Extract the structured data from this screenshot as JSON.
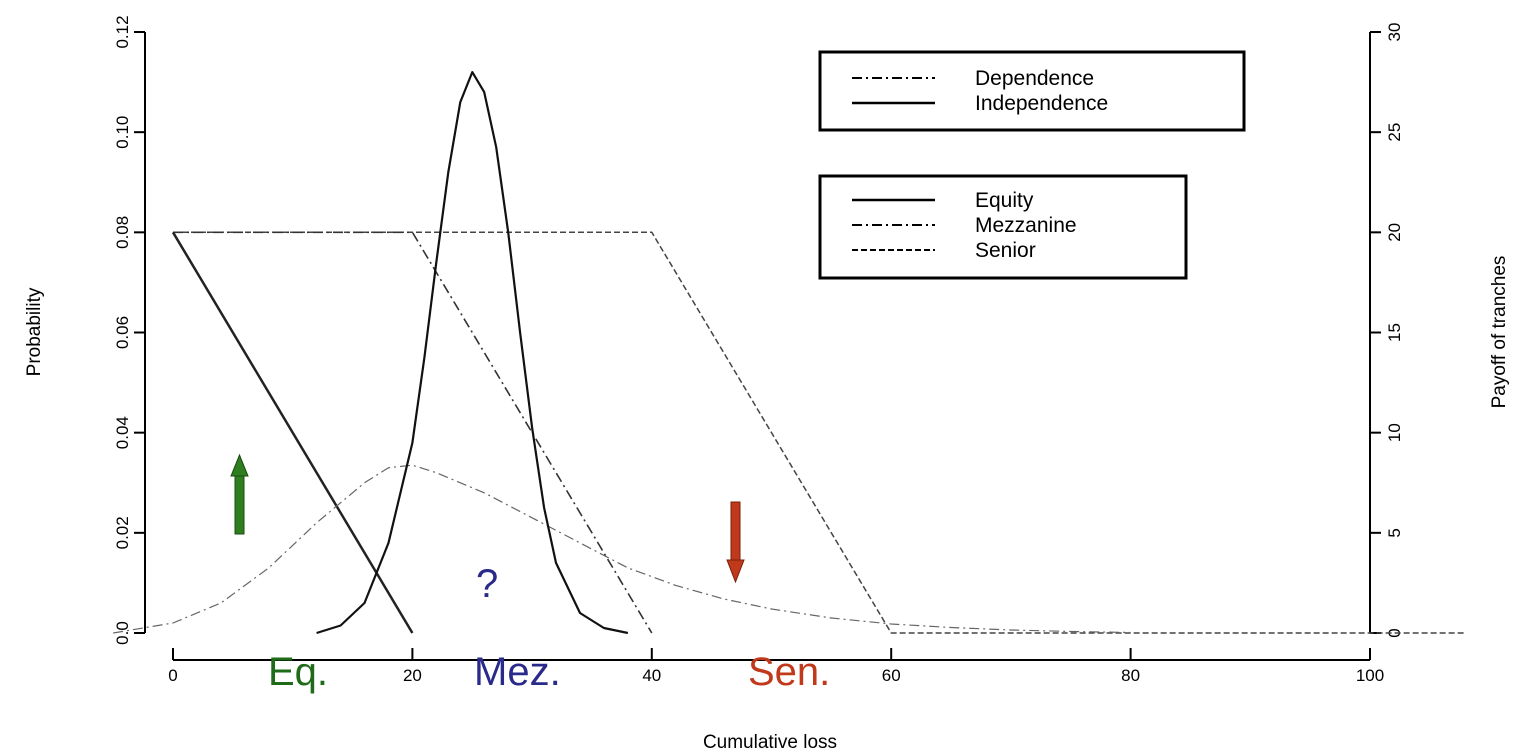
{
  "chart_data": {
    "type": "line",
    "xlabel": "Cumulative loss",
    "ylabel_left": "Probability",
    "ylabel_right": "Payoff of tranches",
    "xlim": [
      0,
      108
    ],
    "ylim_left": [
      0,
      0.12
    ],
    "ylim_right": [
      0,
      30
    ],
    "x_ticks": [
      0,
      20,
      40,
      60,
      80,
      100
    ],
    "x_tick_labels": [
      "0",
      "20",
      "40",
      "60",
      "80",
      "100"
    ],
    "y_left_ticks": [
      0,
      0.02,
      0.04,
      0.06,
      0.08,
      0.1,
      0.12
    ],
    "y_left_tick_labels": [
      "0.0",
      "0.02",
      "0.04",
      "0.06",
      "0.08",
      "0.10",
      "0.12"
    ],
    "y_right_ticks": [
      0,
      5,
      10,
      15,
      20,
      25,
      30
    ],
    "y_right_tick_labels": [
      "0",
      "5",
      "10",
      "15",
      "20",
      "25",
      "30"
    ],
    "grid": false,
    "distributions": [
      {
        "name": "Independence",
        "style": "solid",
        "axis": "left",
        "x": [
          12,
          14,
          16,
          18,
          20,
          21,
          22,
          23,
          24,
          25,
          26,
          27,
          28,
          29,
          30,
          31,
          32,
          34,
          36,
          38
        ],
        "y": [
          0.0,
          0.0015,
          0.006,
          0.018,
          0.038,
          0.055,
          0.074,
          0.092,
          0.106,
          0.112,
          0.108,
          0.097,
          0.08,
          0.06,
          0.041,
          0.025,
          0.014,
          0.004,
          0.001,
          0.0
        ]
      },
      {
        "name": "Dependence",
        "style": "dashdot",
        "axis": "left",
        "x": [
          -5,
          0,
          4,
          8,
          12,
          16,
          18,
          20,
          22,
          26,
          30,
          34,
          38,
          42,
          46,
          50,
          55,
          60,
          65,
          70,
          75,
          80
        ],
        "y": [
          0.0,
          0.002,
          0.006,
          0.013,
          0.022,
          0.03,
          0.033,
          0.0335,
          0.032,
          0.028,
          0.023,
          0.018,
          0.013,
          0.0095,
          0.0068,
          0.0048,
          0.003,
          0.0018,
          0.0011,
          0.0006,
          0.0003,
          0.0001
        ]
      }
    ],
    "tranches": [
      {
        "name": "Equity",
        "style": "solid",
        "axis": "right",
        "x": [
          0,
          20
        ],
        "y": [
          20,
          0
        ]
      },
      {
        "name": "Mezzanine",
        "style": "dashdot",
        "axis": "right",
        "x": [
          0,
          20,
          40
        ],
        "y": [
          20,
          20,
          0
        ]
      },
      {
        "name": "Senior",
        "style": "dashed",
        "axis": "right",
        "x": [
          0,
          40,
          60,
          108
        ],
        "y": [
          20,
          20,
          0,
          0
        ]
      }
    ],
    "legend_dependence": [
      "Dependence",
      "Independence"
    ],
    "legend_tranches": [
      "Equity",
      "Mezzanine",
      "Senior"
    ],
    "legend_placement": "top-right",
    "annotations": [
      {
        "text": "Eq.",
        "color": "#1f6b1a",
        "x": 9
      },
      {
        "text": "Mez.",
        "color": "#2a2a8a",
        "x": 27
      },
      {
        "text": "Sen.",
        "color": "#c0391b",
        "x": 49
      },
      {
        "text": "?",
        "color": "#2a2a8a",
        "x": 27
      }
    ],
    "arrows": [
      {
        "direction": "up",
        "color": "#2e7d1e",
        "x": 5.5
      },
      {
        "direction": "down",
        "color": "#c0391b",
        "x": 47
      }
    ]
  }
}
